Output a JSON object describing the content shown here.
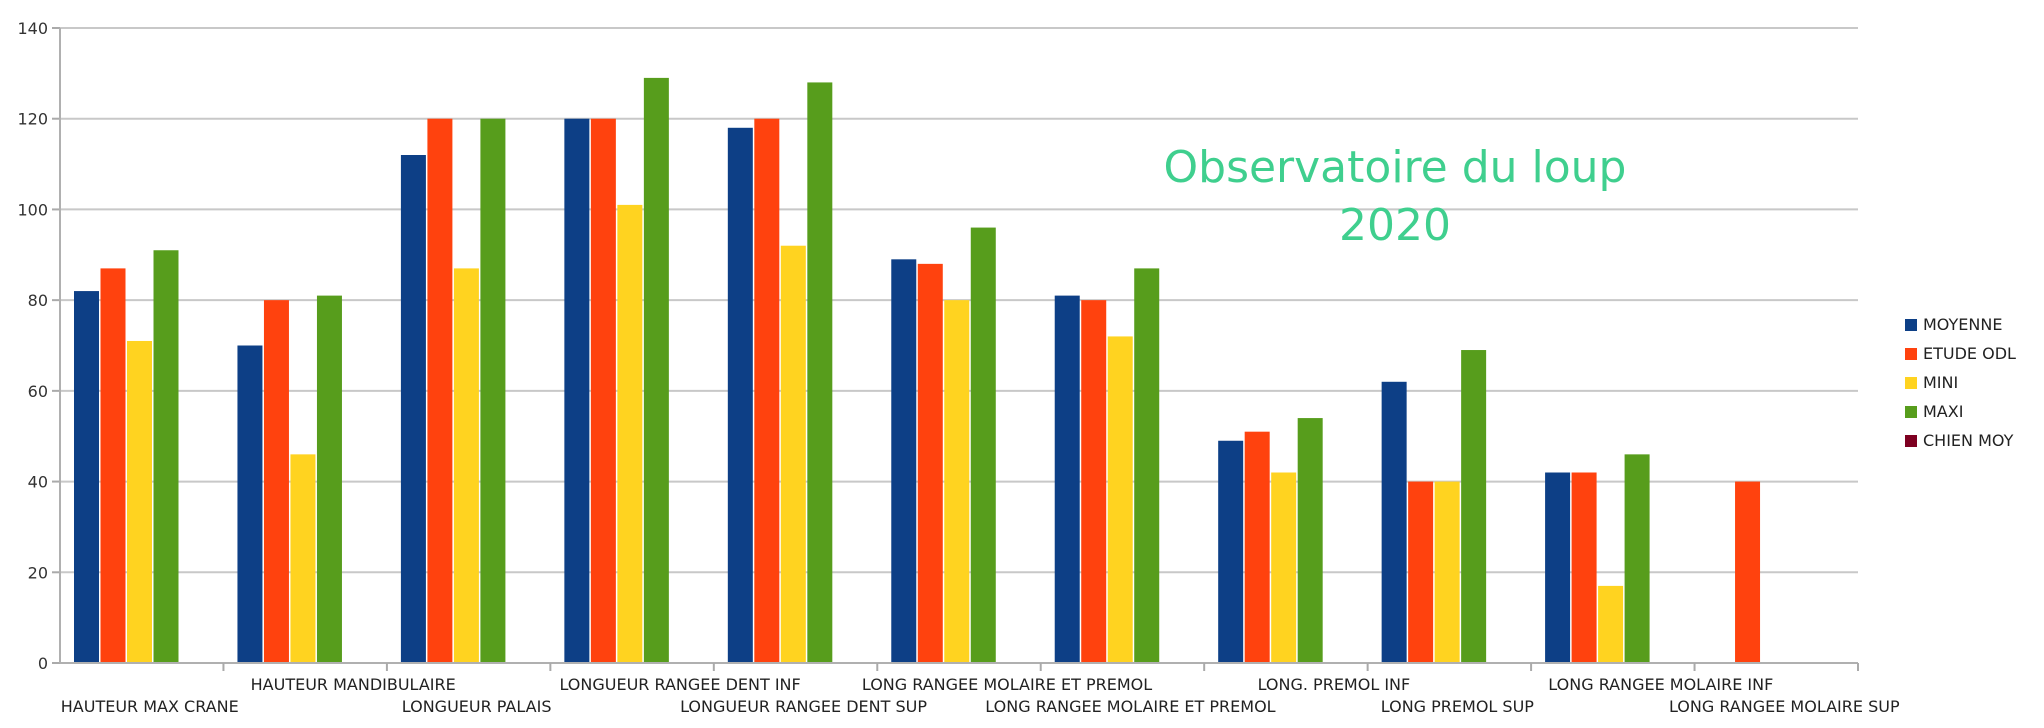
{
  "chart_data": {
    "type": "bar",
    "title": "Observatoire du loup",
    "subtitle": "2020",
    "xlabel": "",
    "ylabel": "",
    "ylim": [
      0,
      140
    ],
    "yticks": [
      0,
      20,
      40,
      60,
      80,
      100,
      120,
      140
    ],
    "grid": true,
    "legend_position": "right",
    "categories": [
      "HAUTEUR MAX CRANE",
      "HAUTEUR MANDIBULAIRE",
      "LONGUEUR PALAIS",
      "LONGUEUR RANGEE DENT INF",
      "LONGUEUR RANGEE DENT SUP",
      "LONG RANGEE MOLAIRE ET PREMOL",
      "LONG RANGEE MOLAIRE ET PREMOL",
      "LONG. PREMOL INF",
      "LONG PREMOL SUP",
      "LONG RANGEE MOLAIRE INF",
      "LONG RANGEE MOLAIRE SUP"
    ],
    "series": [
      {
        "name": "MOYENNE",
        "color": "#0d3f86",
        "values": [
          82,
          70,
          112,
          120,
          118,
          89,
          81,
          49,
          62,
          42,
          null
        ]
      },
      {
        "name": "ETUDE ODL",
        "color": "#ff420e",
        "values": [
          87,
          80,
          120,
          120,
          120,
          88,
          80,
          51,
          40,
          42,
          40
        ]
      },
      {
        "name": "MINI",
        "color": "#ffd320",
        "values": [
          71,
          46,
          87,
          101,
          92,
          80,
          72,
          42,
          40,
          17,
          null
        ]
      },
      {
        "name": "MAXI",
        "color": "#579d1c",
        "values": [
          91,
          81,
          120,
          129,
          128,
          96,
          87,
          54,
          69,
          46,
          null
        ]
      },
      {
        "name": "CHIEN MOY",
        "color": "#7e0021",
        "values": [
          null,
          null,
          null,
          null,
          null,
          null,
          null,
          null,
          null,
          null,
          null
        ]
      }
    ],
    "title_color": "#3fcf8e"
  }
}
